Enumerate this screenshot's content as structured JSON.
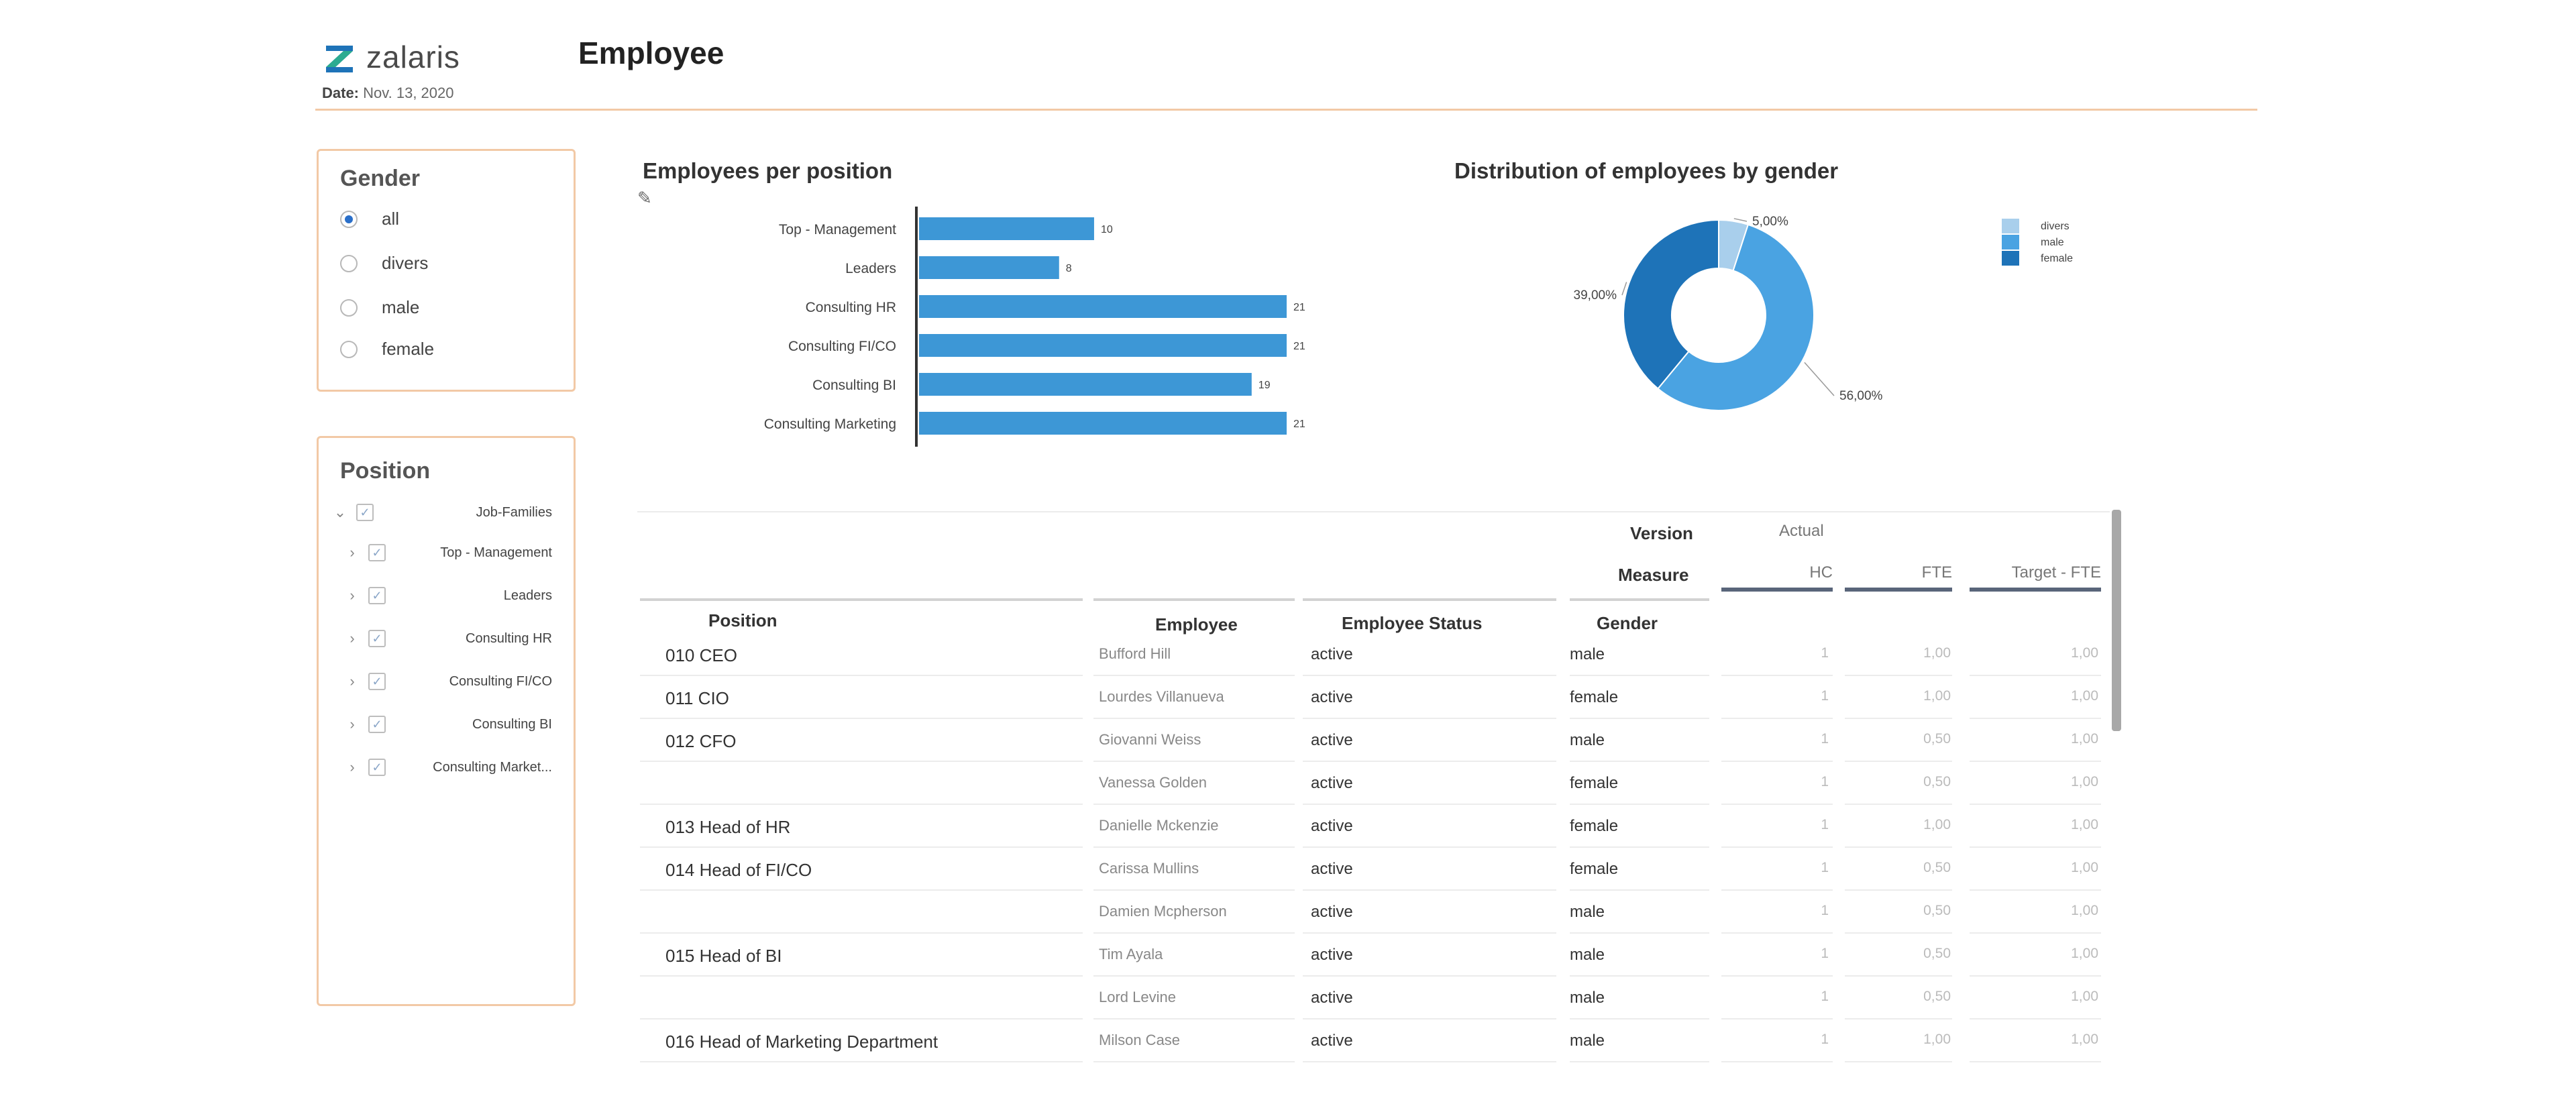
{
  "header": {
    "logo_text": "zalaris",
    "date_label": "Date:",
    "date_value": "Nov. 13, 2020",
    "page_title": "Employee"
  },
  "colors": {
    "accent_border": "#f2c9a6",
    "bar": "#3d97d6",
    "divers": "#a9cfec",
    "male": "#4aa3e2",
    "female": "#1e73b8"
  },
  "gender_filter": {
    "title": "Gender",
    "options": [
      {
        "label": "all",
        "selected": true
      },
      {
        "label": "divers",
        "selected": false
      },
      {
        "label": "male",
        "selected": false
      },
      {
        "label": "female",
        "selected": false
      }
    ]
  },
  "position_filter": {
    "title": "Position",
    "root": {
      "label": "Job-Families",
      "checked": true,
      "expanded": true
    },
    "items": [
      {
        "label": "Top - Management",
        "checked": true
      },
      {
        "label": "Leaders",
        "checked": true
      },
      {
        "label": "Consulting HR",
        "checked": true
      },
      {
        "label": "Consulting FI/CO",
        "checked": true
      },
      {
        "label": "Consulting BI",
        "checked": true
      },
      {
        "label": "Consulting Market...",
        "checked": true
      }
    ]
  },
  "chart_data": [
    {
      "type": "bar",
      "orientation": "horizontal",
      "title": "Employees per position",
      "categories": [
        "Top - Management",
        "Leaders",
        "Consulting HR",
        "Consulting FI/CO",
        "Consulting BI",
        "Consulting Marketing"
      ],
      "values": [
        10,
        8,
        21,
        21,
        19,
        21
      ],
      "xlim": [
        0,
        21
      ]
    },
    {
      "type": "pie",
      "variant": "donut",
      "title": "Distribution of employees by gender",
      "slices": [
        {
          "name": "divers",
          "value": 5.0,
          "label": "5,00%"
        },
        {
          "name": "male",
          "value": 56.0,
          "label": "56,00%"
        },
        {
          "name": "female",
          "value": 39.0,
          "label": "39,00%"
        }
      ],
      "legend": [
        "divers",
        "male",
        "female"
      ],
      "legend_position": "top-right"
    }
  ],
  "table": {
    "version_label": "Version",
    "version_value": "Actual",
    "measure_label": "Measure",
    "columns": {
      "position": "Position",
      "employee": "Employee",
      "status": "Employee Status",
      "gender": "Gender",
      "hc": "HC",
      "fte": "FTE",
      "target_fte": "Target - FTE"
    },
    "rows": [
      {
        "position": "010 CEO",
        "employee": "Bufford Hill",
        "status": "active",
        "gender": "male",
        "hc": "1",
        "fte": "1,00",
        "target_fte": "1,00"
      },
      {
        "position": "011 CIO",
        "employee": "Lourdes Villanueva",
        "status": "active",
        "gender": "female",
        "hc": "1",
        "fte": "1,00",
        "target_fte": "1,00"
      },
      {
        "position": "012 CFO",
        "employee": "Giovanni Weiss",
        "status": "active",
        "gender": "male",
        "hc": "1",
        "fte": "0,50",
        "target_fte": "1,00"
      },
      {
        "position": "",
        "employee": "Vanessa Golden",
        "status": "active",
        "gender": "female",
        "hc": "1",
        "fte": "0,50",
        "target_fte": "1,00"
      },
      {
        "position": "013 Head of HR",
        "employee": "Danielle Mckenzie",
        "status": "active",
        "gender": "female",
        "hc": "1",
        "fte": "1,00",
        "target_fte": "1,00"
      },
      {
        "position": "014 Head of FI/CO",
        "employee": "Carissa Mullins",
        "status": "active",
        "gender": "female",
        "hc": "1",
        "fte": "0,50",
        "target_fte": "1,00"
      },
      {
        "position": "",
        "employee": "Damien Mcpherson",
        "status": "active",
        "gender": "male",
        "hc": "1",
        "fte": "0,50",
        "target_fte": "1,00"
      },
      {
        "position": "015 Head of BI",
        "employee": "Tim Ayala",
        "status": "active",
        "gender": "male",
        "hc": "1",
        "fte": "0,50",
        "target_fte": "1,00"
      },
      {
        "position": "",
        "employee": "Lord Levine",
        "status": "active",
        "gender": "male",
        "hc": "1",
        "fte": "0,50",
        "target_fte": "1,00"
      },
      {
        "position": "016 Head of Marketing Department",
        "employee": "Milson Case",
        "status": "active",
        "gender": "male",
        "hc": "1",
        "fte": "1,00",
        "target_fte": "1,00"
      }
    ]
  }
}
